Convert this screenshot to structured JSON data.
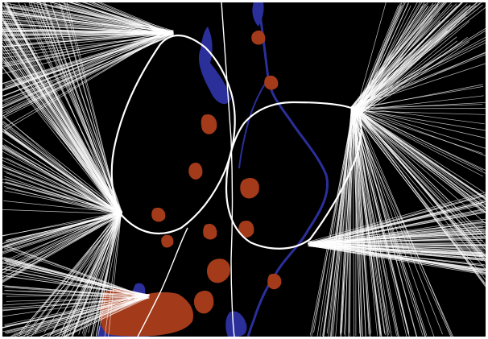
{
  "map": {
    "kind": "flight-track density map",
    "colors": {
      "background": "#000000",
      "frame": "#ffffff",
      "flight_tracks": "#ffffff",
      "water": "#2a2f9a",
      "urban": "#a33a1a"
    },
    "layers": [
      {
        "name": "flight-tracks",
        "icon": "line-bundles"
      },
      {
        "name": "holding-patterns",
        "icon": "racetrack-loops"
      },
      {
        "name": "water-bodies",
        "icon": "blue-fill"
      },
      {
        "name": "urban-areas",
        "icon": "red-fill"
      }
    ]
  }
}
